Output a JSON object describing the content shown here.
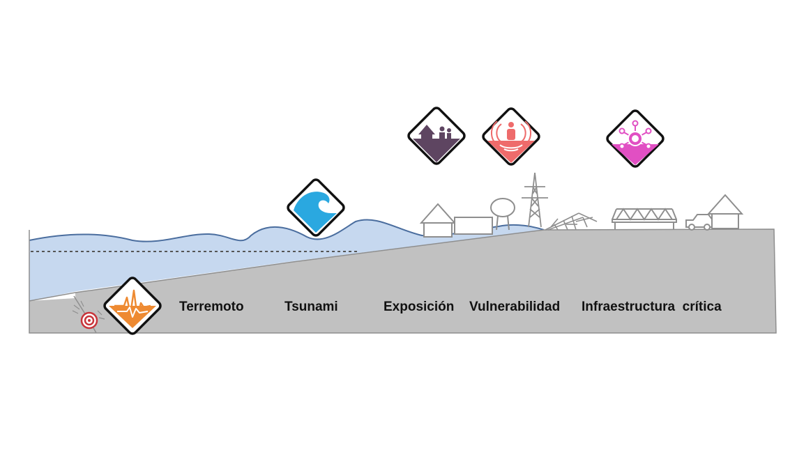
{
  "labels": {
    "earthquake": "Terremoto",
    "tsunami": "Tsunami",
    "exposure": "Exposición",
    "vulnerability": "Vulnerabilidad",
    "infrastructure": "Infraestructura  crítica"
  },
  "icons": {
    "earthquake": "seismograph-icon",
    "tsunami": "wave-icon",
    "exposure": "house-and-people-icon",
    "vulnerability": "person-in-danger-icon",
    "infrastructure": "network-node-icon",
    "epicenter": "epicenter-target-icon"
  },
  "colors": {
    "earthquake": "#EE8A32",
    "tsunami": "#2AA8E0",
    "exposure": "#5E4561",
    "vulnerability": "#EE6B6B",
    "infrastructure": "#E14FC3",
    "ground": "#C1C1C1",
    "water": "#C6D8EF",
    "wave_line": "#4A6D9E",
    "epicenter": "#C8343A"
  }
}
